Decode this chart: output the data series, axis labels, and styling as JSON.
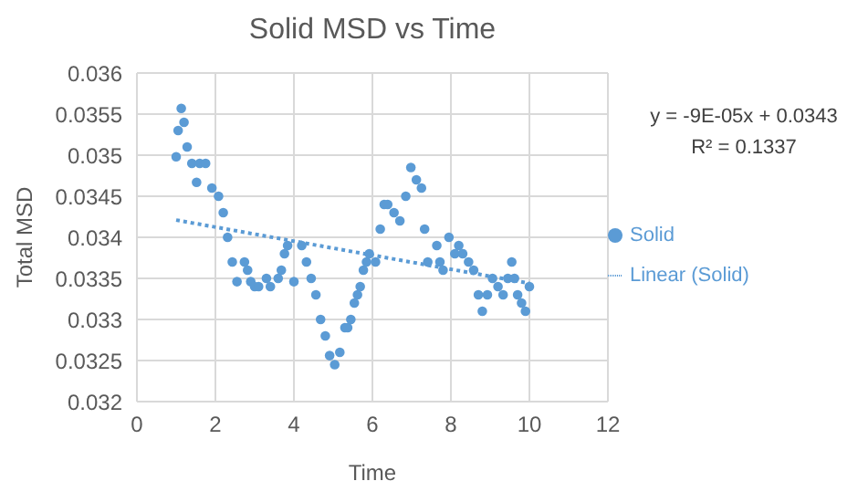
{
  "chart_data": {
    "type": "scatter",
    "title": "Solid MSD vs Time",
    "xlabel": "Time",
    "ylabel": "Total MSD",
    "xlim": [
      0,
      12
    ],
    "xticks": [
      0,
      2,
      4,
      6,
      8,
      10,
      12
    ],
    "ylim": [
      0.032,
      0.036
    ],
    "yticks": [
      {
        "value": 0.032,
        "label": "0.032"
      },
      0.0325,
      {
        "value": 0.033,
        "label": "0.033"
      },
      0.0335,
      {
        "value": 0.034,
        "label": "0.034"
      },
      0.0345,
      {
        "value": 0.035,
        "label": "0.035"
      },
      0.0355,
      {
        "value": 0.036,
        "label": "0.036"
      }
    ],
    "grid": true,
    "legend": "right",
    "marker": "circle",
    "annotations": [
      "y = -9E-05x + 0.0343",
      "R² = 0.1337"
    ],
    "series": [
      {
        "name": "Solid",
        "color": "#5b9bd5",
        "x": [
          1.0,
          1.05,
          1.13,
          1.2,
          1.28,
          1.4,
          1.52,
          1.6,
          1.75,
          1.91,
          2.08,
          2.2,
          2.31,
          2.43,
          2.55,
          2.74,
          2.82,
          2.9,
          3.0,
          3.1,
          3.3,
          3.4,
          3.6,
          3.68,
          3.76,
          3.84,
          4.0,
          4.2,
          4.32,
          4.44,
          4.56,
          4.68,
          4.8,
          4.91,
          5.04,
          5.17,
          5.3,
          5.37,
          5.45,
          5.54,
          5.62,
          5.69,
          5.77,
          5.85,
          5.92,
          6.08,
          6.2,
          6.3,
          6.39,
          6.55,
          6.7,
          6.85,
          6.98,
          7.12,
          7.25,
          7.33,
          7.41,
          7.64,
          7.72,
          7.8,
          7.95,
          8.1,
          8.2,
          8.3,
          8.45,
          8.58,
          8.7,
          8.8,
          8.93,
          9.06,
          9.2,
          9.33,
          9.45,
          9.55,
          9.62,
          9.7,
          9.8,
          9.9,
          10.0
        ],
        "values": [
          0.03498,
          0.0353,
          0.03557,
          0.0354,
          0.0351,
          0.0349,
          0.03467,
          0.0349,
          0.0349,
          0.0346,
          0.0345,
          0.0343,
          0.034,
          0.0337,
          0.03346,
          0.0337,
          0.0336,
          0.03346,
          0.0334,
          0.0334,
          0.0335,
          0.0334,
          0.0335,
          0.0336,
          0.0338,
          0.0339,
          0.03346,
          0.0339,
          0.0337,
          0.0335,
          0.0333,
          0.033,
          0.0328,
          0.03256,
          0.03245,
          0.0326,
          0.0329,
          0.0329,
          0.033,
          0.0332,
          0.0333,
          0.0334,
          0.0336,
          0.0337,
          0.0338,
          0.0337,
          0.0341,
          0.0344,
          0.0344,
          0.0343,
          0.0342,
          0.0345,
          0.03485,
          0.0347,
          0.0346,
          0.0341,
          0.0337,
          0.0339,
          0.0337,
          0.0336,
          0.034,
          0.0338,
          0.0339,
          0.0338,
          0.0337,
          0.0336,
          0.0333,
          0.0331,
          0.0333,
          0.0335,
          0.0334,
          0.0333,
          0.0335,
          0.0337,
          0.0335,
          0.0333,
          0.0332,
          0.0331,
          0.0334
        ]
      },
      {
        "name": "Linear (Solid)",
        "type": "line",
        "line_style": "dotted",
        "marker": "none",
        "color": "#5b9bd5",
        "x": [
          1,
          10
        ],
        "values": [
          0.03421,
          0.03344
        ]
      }
    ]
  }
}
